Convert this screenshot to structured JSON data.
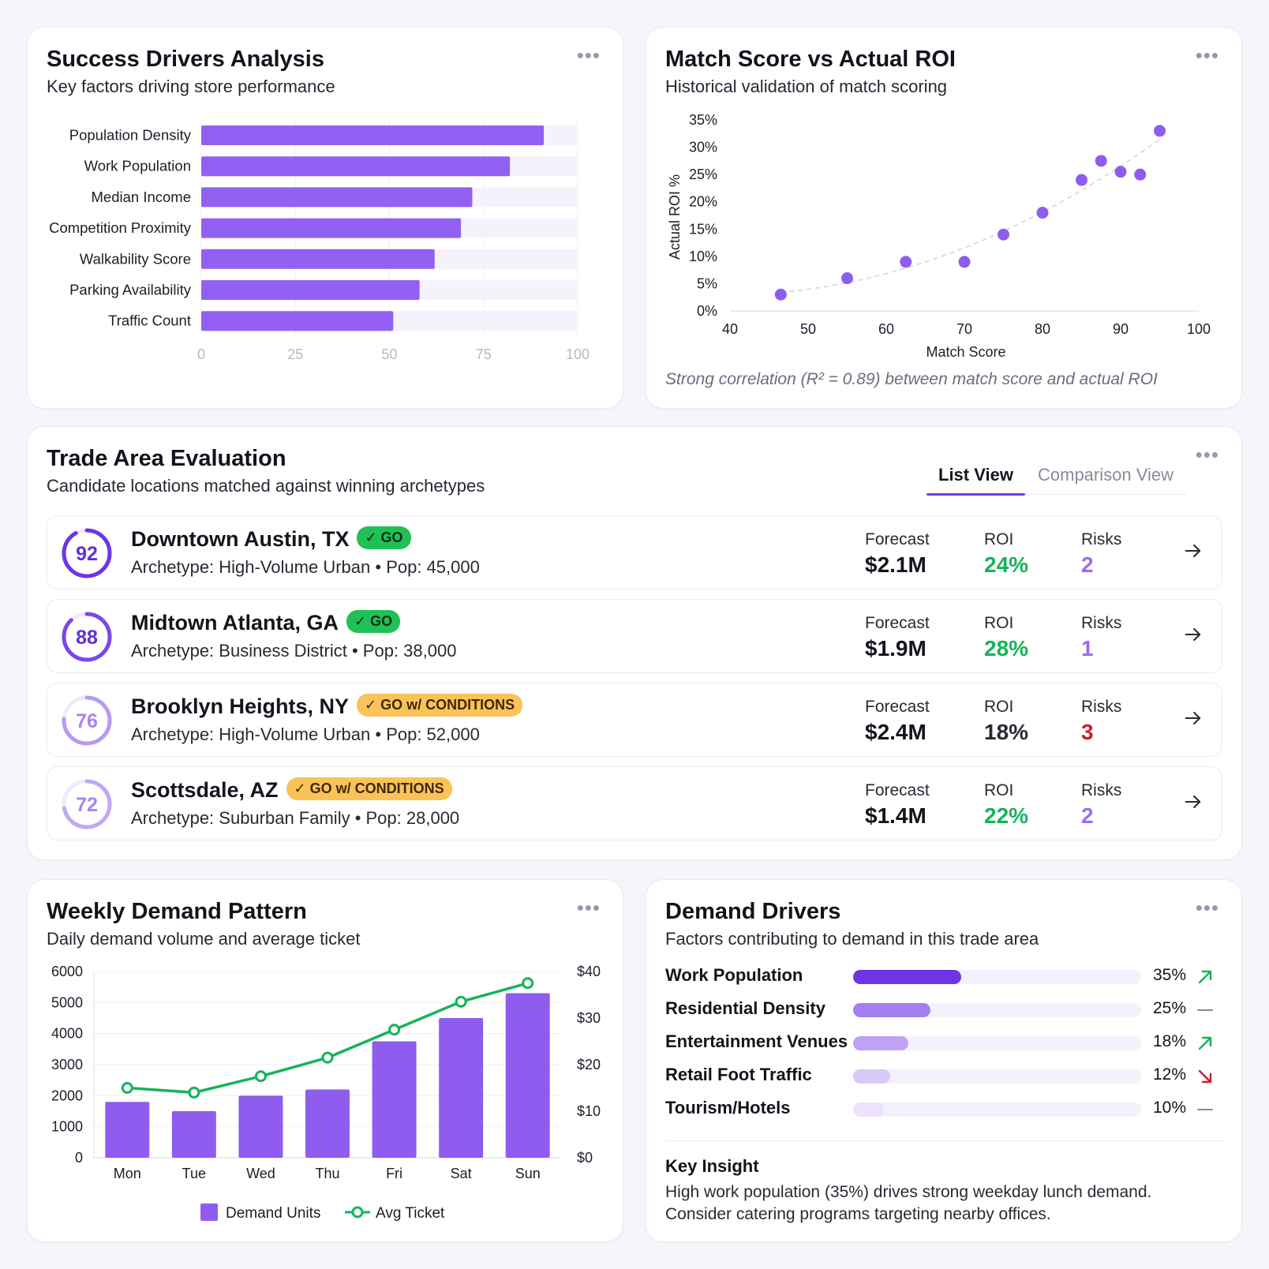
{
  "colors": {
    "accent": "#7c4ff0",
    "green": "#16b35a",
    "red": "#d11a2a",
    "amber": "#fbc25a",
    "track": "#f5f2fc"
  },
  "success_drivers": {
    "title": "Success Drivers Analysis",
    "subtitle": "Key factors driving store performance",
    "menu_icon": "more-horizontal-icon"
  },
  "match_score": {
    "title": "Match Score vs Actual ROI",
    "subtitle": "Historical validation of match scoring",
    "note": "Strong correlation (R² = 0.89) between match score and actual ROI",
    "menu_icon": "more-horizontal-icon"
  },
  "trade_area": {
    "title": "Trade Area Evaluation",
    "subtitle": "Candidate locations matched against winning archetypes",
    "tabs": [
      {
        "label": "List View",
        "active": true
      },
      {
        "label": "Comparison View",
        "active": false
      }
    ],
    "metric_labels": {
      "forecast": "Forecast",
      "roi": "ROI",
      "risks": "Risks"
    },
    "locations": [
      {
        "score": "92",
        "score_frac": 0.92,
        "name": "Downtown Austin, TX",
        "badge": "✓ GO",
        "badge_type": "go",
        "meta": "Archetype: High-Volume Urban • Pop: 45,000",
        "forecast": "$2.1M",
        "roi": "24%",
        "roi_color": "#16b35a",
        "risks": "2",
        "risks_color": "#9b6bf0"
      },
      {
        "score": "88",
        "score_frac": 0.88,
        "name": "Midtown Atlanta, GA",
        "badge": "✓ GO",
        "badge_type": "go",
        "meta": "Archetype: Business District • Pop: 38,000",
        "forecast": "$1.9M",
        "roi": "28%",
        "roi_color": "#16b35a",
        "risks": "1",
        "risks_color": "#9b6bf0"
      },
      {
        "score": "76",
        "score_frac": 0.76,
        "name": "Brooklyn Heights, NY",
        "badge": "✓ GO w/ CONDITIONS",
        "badge_type": "cond",
        "meta": "Archetype: High-Volume Urban • Pop: 52,000",
        "forecast": "$2.4M",
        "roi": "18%",
        "roi_color": "#2b2833",
        "risks": "3",
        "risks_color": "#d11a2a"
      },
      {
        "score": "72",
        "score_frac": 0.72,
        "name": "Scottsdale, AZ",
        "badge": "✓ GO w/ CONDITIONS",
        "badge_type": "cond",
        "meta": "Archetype: Suburban Family • Pop: 28,000",
        "forecast": "$1.4M",
        "roi": "22%",
        "roi_color": "#16b35a",
        "risks": "2",
        "risks_color": "#9b6bf0"
      }
    ]
  },
  "weekly_demand": {
    "title": "Weekly Demand Pattern",
    "subtitle": "Daily demand volume and average ticket",
    "menu_icon": "more-horizontal-icon"
  },
  "demand_drivers": {
    "title": "Demand Drivers",
    "subtitle": "Factors contributing to demand in this trade area",
    "items": [
      {
        "label": "Work Population",
        "pct": "35%",
        "value": 35,
        "trend": "up",
        "color": "#6d35e6"
      },
      {
        "label": "Residential Density",
        "pct": "25%",
        "value": 25,
        "trend": "flat",
        "color": "#a57ef0"
      },
      {
        "label": "Entertainment Venues",
        "pct": "18%",
        "value": 18,
        "trend": "up",
        "color": "#bfa1f5"
      },
      {
        "label": "Retail Foot Traffic",
        "pct": "12%",
        "value": 12,
        "trend": "down",
        "color": "#d9c8fa"
      },
      {
        "label": "Tourism/Hotels",
        "pct": "10%",
        "value": 10,
        "trend": "flat",
        "color": "#ece2fd"
      }
    ],
    "insight_title": "Key Insight",
    "insight_line1": "High work population (35%) drives strong weekday lunch demand.",
    "insight_line2": "Consider catering programs targeting nearby offices."
  },
  "chart_data": [
    {
      "type": "bar",
      "orientation": "horizontal",
      "title": "Success Drivers Analysis",
      "categories": [
        "Population Density",
        "Work Population",
        "Median Income",
        "Competition Proximity",
        "Walkability Score",
        "Parking Availability",
        "Traffic Count"
      ],
      "values": [
        91,
        82,
        72,
        69,
        62,
        58,
        51
      ],
      "xlim": [
        0,
        100
      ],
      "xticks": [
        "0",
        "25",
        "50",
        "75",
        "100"
      ],
      "grid": true
    },
    {
      "type": "scatter",
      "title": "Match Score vs Actual ROI",
      "xlabel": "Match Score",
      "ylabel": "Actual ROI %",
      "xlim": [
        40,
        100
      ],
      "ylim": [
        0,
        35
      ],
      "xticks": [
        "40",
        "50",
        "60",
        "70",
        "80",
        "90",
        "100"
      ],
      "yticks": [
        "0%",
        "5%",
        "10%",
        "15%",
        "20%",
        "25%",
        "30%",
        "35%"
      ],
      "points": [
        {
          "x": 46.5,
          "y": 3
        },
        {
          "x": 55,
          "y": 6
        },
        {
          "x": 62.5,
          "y": 9
        },
        {
          "x": 70,
          "y": 9
        },
        {
          "x": 75,
          "y": 14
        },
        {
          "x": 80,
          "y": 18
        },
        {
          "x": 85,
          "y": 24
        },
        {
          "x": 87.5,
          "y": 27.5
        },
        {
          "x": 90,
          "y": 25.5
        },
        {
          "x": 92.5,
          "y": 25
        },
        {
          "x": 95,
          "y": 33
        }
      ],
      "trendline": "dashed",
      "grid": false
    },
    {
      "type": "bar",
      "title": "Weekly Demand Pattern",
      "categories": [
        "Mon",
        "Tue",
        "Wed",
        "Thu",
        "Fri",
        "Sat",
        "Sun"
      ],
      "series": [
        {
          "name": "Demand Units",
          "type": "bar",
          "axis": "left",
          "values": [
            1800,
            1500,
            2000,
            2200,
            3750,
            4500,
            5300
          ],
          "color": "#8f5cf0"
        },
        {
          "name": "Avg Ticket",
          "type": "line",
          "axis": "right",
          "values": [
            15,
            14,
            17.5,
            21.5,
            27.5,
            33.5,
            37.5
          ],
          "color": "#16b35a"
        }
      ],
      "ylim_left": [
        0,
        6000
      ],
      "ylim_right": [
        0,
        40
      ],
      "yticks_left": [
        "0",
        "1000",
        "2000",
        "3000",
        "4000",
        "5000",
        "6000"
      ],
      "yticks_right": [
        "$0",
        "$10",
        "$20",
        "$30",
        "$40"
      ],
      "legend": "bottom",
      "grid": true
    }
  ]
}
